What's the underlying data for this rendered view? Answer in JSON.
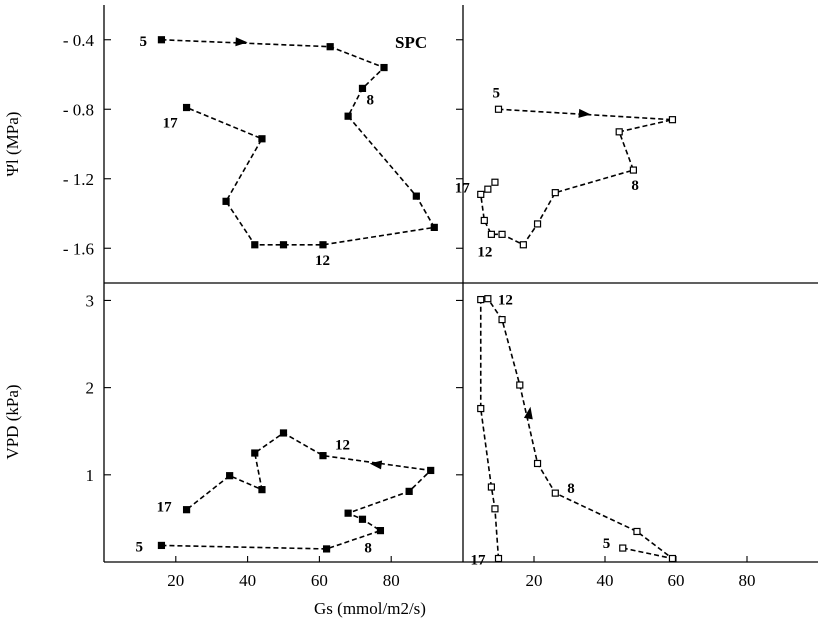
{
  "chart_data": {
    "type": "scatter",
    "panel_label": "SPC",
    "xlabel": "Gs (mmol/m2/s)",
    "x_ticks": [
      "20",
      "40",
      "60",
      "80"
    ],
    "top_ylabel": "Ψl (MPa)",
    "top_y_ticks": [
      "- 0.4",
      "- 0.8",
      "- 1.2",
      "- 1.6"
    ],
    "bottom_ylabel": "VPD (kPa)",
    "bottom_y_ticks": [
      "1",
      "2",
      "3"
    ],
    "xlim": [
      0,
      100
    ],
    "top_ylim": [
      -1.8,
      -0.2
    ],
    "bottom_ylim": [
      0,
      3.2
    ],
    "panels": [
      {
        "row": "top",
        "col": "left",
        "marker": "filled",
        "points": [
          [
            16,
            -0.4
          ],
          [
            63,
            -0.44
          ],
          [
            78,
            -0.56
          ],
          [
            72,
            -0.68
          ],
          [
            68,
            -0.84
          ],
          [
            87,
            -1.3
          ],
          [
            92,
            -1.48
          ],
          [
            61,
            -1.58
          ],
          [
            50,
            -1.58
          ],
          [
            42,
            -1.58
          ],
          [
            34,
            -1.33
          ],
          [
            44,
            -0.97
          ],
          [
            23,
            -0.79
          ]
        ],
        "arrow": [
          [
            30,
            -0.405
          ],
          [
            40,
            -0.415
          ]
        ],
        "labels": [
          {
            "text": "5",
            "x": 16,
            "y": -0.4
          },
          {
            "text": "8",
            "x": 72,
            "y": -0.68
          },
          {
            "text": "12",
            "x": 61,
            "y": -1.58
          },
          {
            "text": "17",
            "x": 23,
            "y": -0.79
          }
        ]
      },
      {
        "row": "top",
        "col": "right",
        "marker": "open",
        "points": [
          [
            10,
            -0.8
          ],
          [
            59,
            -0.86
          ],
          [
            44,
            -0.93
          ],
          [
            48,
            -1.15
          ],
          [
            26,
            -1.28
          ],
          [
            21,
            -1.46
          ],
          [
            17,
            -1.58
          ],
          [
            11,
            -1.52
          ],
          [
            8,
            -1.52
          ],
          [
            6,
            -1.44
          ],
          [
            5,
            -1.29
          ],
          [
            7,
            -1.26
          ],
          [
            9,
            -1.22
          ]
        ],
        "arrow": [
          [
            28,
            -0.815
          ],
          [
            36,
            -0.83
          ]
        ],
        "labels": [
          {
            "text": "5",
            "x": 10,
            "y": -0.8
          },
          {
            "text": "8",
            "x": 48,
            "y": -1.15
          },
          {
            "text": "12",
            "x": 8,
            "y": -1.52
          },
          {
            "text": "17",
            "x": 5,
            "y": -1.29
          }
        ]
      },
      {
        "row": "bottom",
        "col": "left",
        "marker": "filled",
        "points": [
          [
            16,
            0.19
          ],
          [
            62,
            0.15
          ],
          [
            77,
            0.36
          ],
          [
            72,
            0.49
          ],
          [
            68,
            0.56
          ],
          [
            85,
            0.81
          ],
          [
            91,
            1.05
          ],
          [
            61,
            1.22
          ],
          [
            50,
            1.48
          ],
          [
            42,
            1.25
          ],
          [
            44,
            0.83
          ],
          [
            35,
            0.99
          ],
          [
            23,
            0.6
          ]
        ],
        "arrow": [
          [
            80,
            1.1
          ],
          [
            74,
            1.13
          ]
        ],
        "labels": [
          {
            "text": "5",
            "x": 16,
            "y": 0.19
          },
          {
            "text": "8",
            "x": 77,
            "y": 0.36
          },
          {
            "text": "12",
            "x": 61,
            "y": 1.22
          },
          {
            "text": "17",
            "x": 23,
            "y": 0.6
          }
        ]
      },
      {
        "row": "bottom",
        "col": "right",
        "marker": "open",
        "points": [
          [
            45,
            0.16
          ],
          [
            59,
            0.04
          ],
          [
            49,
            0.35
          ],
          [
            26,
            0.79
          ],
          [
            21,
            1.13
          ],
          [
            16,
            2.03
          ],
          [
            11,
            2.78
          ],
          [
            7,
            3.02
          ],
          [
            5,
            3.01
          ],
          [
            5,
            1.76
          ],
          [
            8,
            0.86
          ],
          [
            9,
            0.61
          ],
          [
            10,
            0.04
          ]
        ],
        "arrow": [
          [
            18,
            1.55
          ],
          [
            19,
            1.78
          ]
        ],
        "labels": [
          {
            "text": "5",
            "x": 45,
            "y": 0.16
          },
          {
            "text": "8",
            "x": 26,
            "y": 0.79
          },
          {
            "text": "12",
            "x": 7,
            "y": 3.02
          },
          {
            "text": "17",
            "x": 10,
            "y": 0.04
          }
        ]
      }
    ]
  }
}
